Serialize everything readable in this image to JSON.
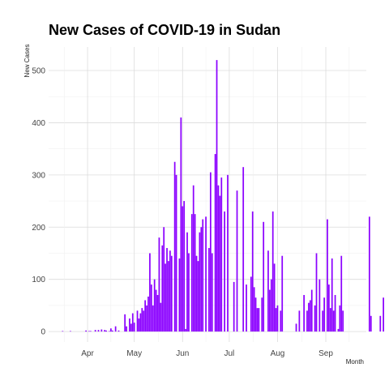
{
  "chart_data": {
    "type": "bar",
    "title": "New Cases of COVID-19 in Sudan",
    "xlabel": "Month",
    "ylabel": "New Cases",
    "x_start": "2020-03-13",
    "x_range": [
      "2020-03-07",
      "2020-09-27"
    ],
    "ylim": [
      -20,
      545
    ],
    "y_ticks": [
      0,
      100,
      200,
      300,
      400,
      500
    ],
    "x_ticks": [
      {
        "date": "2020-04-01",
        "label": "Apr"
      },
      {
        "date": "2020-05-01",
        "label": "May"
      },
      {
        "date": "2020-06-01",
        "label": "Jun"
      },
      {
        "date": "2020-07-01",
        "label": "Jul"
      },
      {
        "date": "2020-08-01",
        "label": "Aug"
      },
      {
        "date": "2020-09-01",
        "label": "Sep"
      }
    ],
    "bar_color": "#8b00ff",
    "grid": true,
    "values": [
      0,
      0,
      0,
      1,
      0,
      0,
      0,
      0,
      1,
      0,
      0,
      0,
      0,
      0,
      0,
      0,
      0,
      0,
      2,
      0,
      1,
      1,
      0,
      0,
      3,
      0,
      3,
      0,
      4,
      0,
      3,
      2,
      0,
      1,
      6,
      2,
      0,
      10,
      0,
      2,
      0,
      0,
      0,
      33,
      10,
      0,
      25,
      15,
      35,
      17,
      0,
      40,
      25,
      35,
      45,
      40,
      60,
      50,
      67,
      150,
      90,
      50,
      100,
      80,
      70,
      180,
      55,
      165,
      200,
      130,
      160,
      135,
      155,
      145,
      0,
      325,
      300,
      0,
      140,
      410,
      240,
      250,
      5,
      190,
      150,
      0,
      225,
      280,
      225,
      145,
      135,
      190,
      200,
      215,
      0,
      220,
      0,
      160,
      305,
      150,
      0,
      340,
      520,
      280,
      260,
      295,
      0,
      230,
      0,
      300,
      0,
      0,
      0,
      95,
      0,
      270,
      0,
      0,
      0,
      315,
      0,
      90,
      0,
      0,
      105,
      230,
      85,
      65,
      45,
      45,
      0,
      65,
      210,
      0,
      0,
      155,
      80,
      100,
      230,
      130,
      45,
      50,
      0,
      40,
      145,
      0,
      0,
      0,
      0,
      0,
      0,
      0,
      0,
      15,
      0,
      40,
      0,
      0,
      70,
      0,
      40,
      55,
      60,
      80,
      0,
      50,
      150,
      0,
      100,
      0,
      40,
      65,
      0,
      215,
      90,
      45,
      140,
      40,
      70,
      0,
      5,
      50,
      145,
      40,
      0,
      0,
      0,
      0,
      0,
      0,
      0,
      0,
      0,
      0,
      0,
      0,
      0,
      0,
      0,
      0,
      220,
      30,
      0,
      0,
      0,
      0,
      0,
      30,
      0,
      65,
      0
    ]
  }
}
